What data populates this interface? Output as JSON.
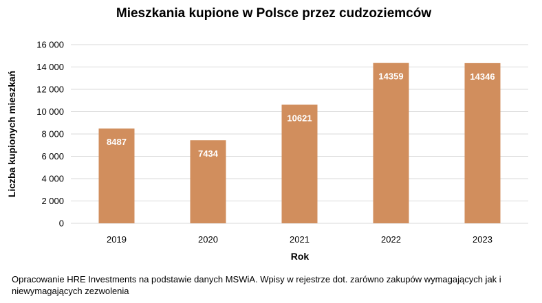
{
  "chart_data": {
    "type": "bar",
    "title": "Mieszkania kupione w Polsce przez cudzoziemców",
    "xlabel": "Rok",
    "ylabel": "Liczba kupionych mieszkań",
    "categories": [
      "2019",
      "2020",
      "2021",
      "2022",
      "2023"
    ],
    "values": [
      8487,
      7434,
      10621,
      14359,
      14346
    ],
    "data_labels": [
      "8487",
      "7434",
      "10621",
      "14359",
      "14346"
    ],
    "ylim": [
      0,
      16000
    ],
    "yticks": [
      0,
      2000,
      4000,
      6000,
      8000,
      10000,
      12000,
      14000,
      16000
    ],
    "ytick_labels": [
      "0",
      "2 000",
      "4 000",
      "6 000",
      "8 000",
      "10 000",
      "12 000",
      "14 000",
      "16 000"
    ],
    "grid": true,
    "legend": "none",
    "bar_color": "#D18E5D",
    "grid_color": "#D9D9D9"
  },
  "footnote": "Opracowanie HRE Investments na podstawie danych MSWiA. Wpisy w rejestrze dot. zarówno zakupów wymagających jak i niewymagających zezwolenia"
}
